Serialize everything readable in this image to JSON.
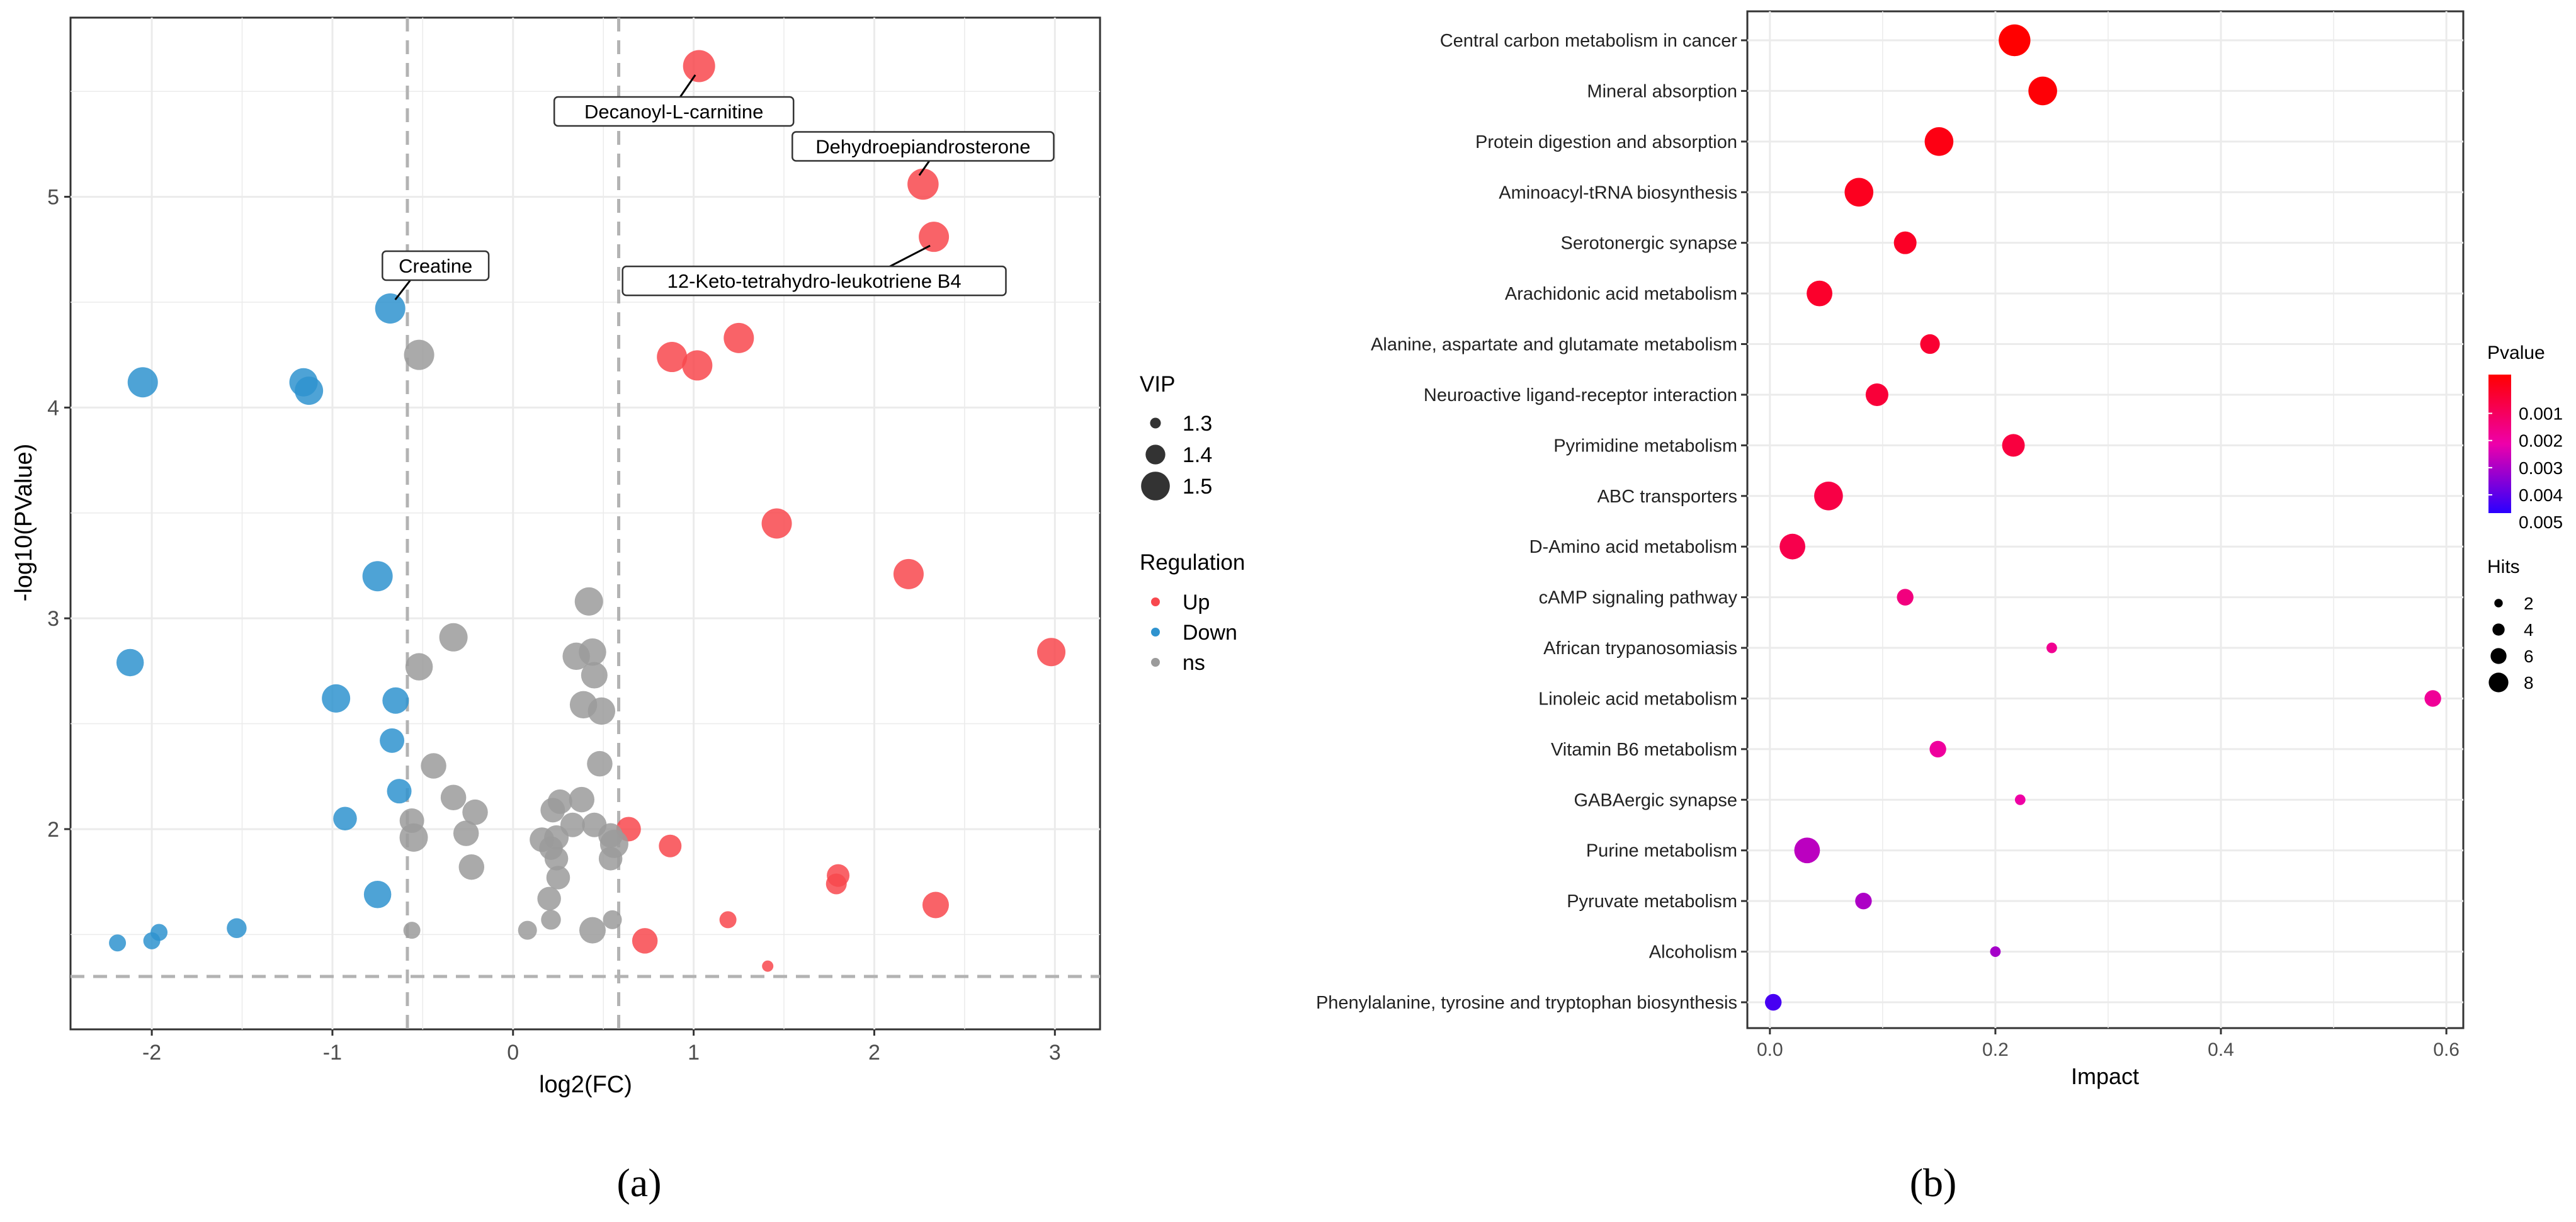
{
  "chart_data": [
    {
      "type": "scatter",
      "panel_label": "(a)",
      "xlabel": "log2(FC)",
      "ylabel": "-log10(PValue)",
      "xlim": [
        -2.45,
        3.25
      ],
      "ylim": [
        1.05,
        5.85
      ],
      "x_ticks": [
        -2,
        -1,
        0,
        1,
        2,
        3
      ],
      "y_ticks": [
        2,
        3,
        4,
        5
      ],
      "grid": true,
      "threshold_lines": {
        "x": [
          -0.585,
          0.585
        ],
        "y": [
          1.301
        ]
      },
      "legend_vip": {
        "title": "VIP",
        "labels": [
          "1.3",
          "1.4",
          "1.5"
        ],
        "values": [
          1.3,
          1.4,
          1.5
        ]
      },
      "legend_regulation": {
        "title": "Regulation",
        "entries": [
          {
            "label": "Up",
            "color": "#f8484e"
          },
          {
            "label": "Down",
            "color": "#2f93cf"
          },
          {
            "label": "ns",
            "color": "#9b9b9b"
          }
        ]
      },
      "series": [
        {
          "name": "Up",
          "color": "#f8484e",
          "points": [
            [
              1.03,
              5.62,
              1.52
            ],
            [
              2.27,
              5.06,
              1.51
            ],
            [
              2.33,
              4.81,
              1.5
            ],
            [
              1.25,
              4.33,
              1.5
            ],
            [
              0.88,
              4.24,
              1.5
            ],
            [
              1.02,
              4.2,
              1.5
            ],
            [
              1.46,
              3.45,
              1.5
            ],
            [
              2.19,
              3.21,
              1.5
            ],
            [
              2.98,
              2.84,
              1.48
            ],
            [
              0.64,
              2.0,
              1.44
            ],
            [
              0.87,
              1.92,
              1.42
            ],
            [
              1.8,
              1.78,
              1.42
            ],
            [
              1.79,
              1.74,
              1.4
            ],
            [
              2.34,
              1.64,
              1.46
            ],
            [
              0.73,
              1.47,
              1.45
            ],
            [
              1.19,
              1.57,
              1.36
            ],
            [
              1.41,
              1.35,
              1.3
            ]
          ]
        },
        {
          "name": "Down",
          "color": "#2f93cf",
          "points": [
            [
              -0.68,
              4.47,
              1.5
            ],
            [
              -2.05,
              4.12,
              1.5
            ],
            [
              -1.16,
              4.12,
              1.48
            ],
            [
              -1.13,
              4.08,
              1.48
            ],
            [
              -0.75,
              3.2,
              1.5
            ],
            [
              -2.12,
              2.79,
              1.47
            ],
            [
              -0.98,
              2.62,
              1.48
            ],
            [
              -0.65,
              2.61,
              1.46
            ],
            [
              -0.67,
              2.42,
              1.44
            ],
            [
              -0.63,
              2.18,
              1.44
            ],
            [
              -0.93,
              2.05,
              1.43
            ],
            [
              -0.75,
              1.69,
              1.47
            ],
            [
              -1.53,
              1.53,
              1.39
            ],
            [
              -1.96,
              1.51,
              1.36
            ],
            [
              -2.0,
              1.47,
              1.36
            ],
            [
              -2.19,
              1.46,
              1.36
            ]
          ]
        },
        {
          "name": "ns",
          "color": "#9b9b9b",
          "points": [
            [
              -0.52,
              4.25,
              1.5
            ],
            [
              0.42,
              3.08,
              1.48
            ],
            [
              -0.33,
              2.91,
              1.48
            ],
            [
              0.44,
              2.84,
              1.47
            ],
            [
              0.35,
              2.82,
              1.47
            ],
            [
              -0.52,
              2.77,
              1.47
            ],
            [
              0.45,
              2.73,
              1.46
            ],
            [
              0.39,
              2.59,
              1.47
            ],
            [
              0.49,
              2.56,
              1.47
            ],
            [
              -0.44,
              2.3,
              1.45
            ],
            [
              0.48,
              2.31,
              1.45
            ],
            [
              -0.33,
              2.15,
              1.45
            ],
            [
              0.38,
              2.14,
              1.45
            ],
            [
              0.26,
              2.13,
              1.44
            ],
            [
              0.22,
              2.09,
              1.44
            ],
            [
              -0.21,
              2.08,
              1.45
            ],
            [
              -0.56,
              2.04,
              1.44
            ],
            [
              0.33,
              2.02,
              1.44
            ],
            [
              0.45,
              2.02,
              1.44
            ],
            [
              -0.26,
              1.98,
              1.45
            ],
            [
              0.54,
              1.97,
              1.44
            ],
            [
              -0.55,
              1.96,
              1.48
            ],
            [
              0.24,
              1.96,
              1.44
            ],
            [
              0.16,
              1.95,
              1.44
            ],
            [
              0.56,
              1.93,
              1.48
            ],
            [
              0.21,
              1.91,
              1.43
            ],
            [
              0.24,
              1.86,
              1.43
            ],
            [
              0.54,
              1.86,
              1.43
            ],
            [
              -0.23,
              1.82,
              1.45
            ],
            [
              0.25,
              1.77,
              1.43
            ],
            [
              0.2,
              1.67,
              1.43
            ],
            [
              0.21,
              1.57,
              1.39
            ],
            [
              0.55,
              1.57,
              1.38
            ],
            [
              0.44,
              1.52,
              1.46
            ],
            [
              0.08,
              1.52,
              1.38
            ],
            [
              -0.56,
              1.52,
              1.36
            ]
          ]
        }
      ],
      "annotations": [
        {
          "label": "Decanoyl-L-carnitine",
          "x": 1.03,
          "y": 5.62
        },
        {
          "label": "Dehydroepiandrosterone",
          "x": 2.27,
          "y": 5.06
        },
        {
          "label": "12-Keto-tetrahydro-leukotriene B4",
          "x": 2.33,
          "y": 4.81
        },
        {
          "label": "Creatine",
          "x": -0.68,
          "y": 4.47
        }
      ]
    },
    {
      "type": "scatter",
      "panel_label": "(b)",
      "xlabel": "Impact",
      "xlim": [
        -0.02,
        0.615
      ],
      "x_ticks": [
        "0.0",
        "0.2",
        "0.4",
        "0.6"
      ],
      "x_tick_values": [
        0.0,
        0.2,
        0.4,
        0.6
      ],
      "grid": true,
      "pvalue_range": [
        0.0002,
        0.0056
      ],
      "legend_pvalue": {
        "title": "Pvalue",
        "labels": [
          "0.001",
          "0.002",
          "0.003",
          "0.004",
          "0.005"
        ],
        "values": [
          0.001,
          0.002,
          0.003,
          0.004,
          0.005
        ]
      },
      "legend_hits": {
        "title": "Hits",
        "labels": [
          "2",
          "4",
          "6",
          "8"
        ],
        "values": [
          2,
          4,
          6,
          8
        ]
      },
      "pathways": [
        {
          "name": "Central carbon metabolism in cancer",
          "impact": 0.217,
          "hits": 8,
          "pvalue": 0.0002
        },
        {
          "name": "Mineral absorption",
          "impact": 0.242,
          "hits": 7,
          "pvalue": 0.0003
        },
        {
          "name": "Protein digestion and absorption",
          "impact": 0.15,
          "hits": 7,
          "pvalue": 0.0005
        },
        {
          "name": "Aminoacyl-tRNA biosynthesis",
          "impact": 0.079,
          "hits": 7,
          "pvalue": 0.0007
        },
        {
          "name": "Serotonergic synapse",
          "impact": 0.12,
          "hits": 5,
          "pvalue": 0.0008
        },
        {
          "name": "Arachidonic acid metabolism",
          "impact": 0.044,
          "hits": 6,
          "pvalue": 0.0009
        },
        {
          "name": "Alanine, aspartate and glutamate metabolism",
          "impact": 0.142,
          "hits": 4,
          "pvalue": 0.001
        },
        {
          "name": "Neuroactive ligand-receptor interaction",
          "impact": 0.095,
          "hits": 5,
          "pvalue": 0.0011
        },
        {
          "name": "Pyrimidine metabolism",
          "impact": 0.216,
          "hits": 5,
          "pvalue": 0.0012
        },
        {
          "name": "ABC transporters",
          "impact": 0.052,
          "hits": 7,
          "pvalue": 0.0013
        },
        {
          "name": "D-Amino acid metabolism",
          "impact": 0.02,
          "hits": 6,
          "pvalue": 0.0014
        },
        {
          "name": "cAMP signaling pathway",
          "impact": 0.12,
          "hits": 3,
          "pvalue": 0.0022
        },
        {
          "name": "African trypanosomiasis",
          "impact": 0.25,
          "hits": 1,
          "pvalue": 0.0025
        },
        {
          "name": "Linoleic acid metabolism",
          "impact": 0.588,
          "hits": 3,
          "pvalue": 0.0026
        },
        {
          "name": "Vitamin B6 metabolism",
          "impact": 0.149,
          "hits": 3,
          "pvalue": 0.0027
        },
        {
          "name": "GABAergic synapse",
          "impact": 0.222,
          "hits": 1,
          "pvalue": 0.0028
        },
        {
          "name": "Purine metabolism",
          "impact": 0.033,
          "hits": 6,
          "pvalue": 0.0036
        },
        {
          "name": "Pyruvate metabolism",
          "impact": 0.083,
          "hits": 3,
          "pvalue": 0.0038
        },
        {
          "name": "Alcoholism",
          "impact": 0.2,
          "hits": 1,
          "pvalue": 0.0039
        },
        {
          "name": "Phenylalanine, tyrosine and tryptophan biosynthesis",
          "impact": 0.003,
          "hits": 3,
          "pvalue": 0.0052
        }
      ]
    }
  ]
}
